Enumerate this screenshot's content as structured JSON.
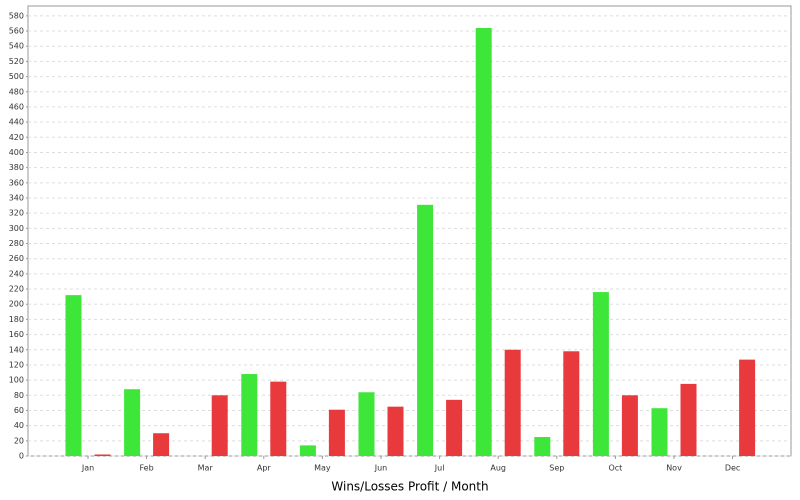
{
  "chart_data": {
    "type": "bar",
    "x_label": "Wins/Losses Profit / Month",
    "categories": [
      "Jan",
      "Feb",
      "Mar",
      "Apr",
      "May",
      "Jun",
      "Jul",
      "Aug",
      "Sep",
      "Oct",
      "Nov",
      "Dec"
    ],
    "series": [
      {
        "color": "#3ee63a",
        "values": [
          212,
          88,
          0,
          108,
          14,
          84,
          331,
          564,
          25,
          216,
          63,
          0
        ]
      },
      {
        "color": "#e8393c",
        "values": [
          2,
          30,
          80,
          98,
          61,
          65,
          74,
          140,
          138,
          80,
          95,
          127
        ]
      }
    ],
    "ylim": [
      0,
      593
    ],
    "yticks": [
      0,
      20,
      40,
      60,
      80,
      100,
      120,
      140,
      160,
      180,
      200,
      220,
      240,
      260,
      280,
      300,
      320,
      340,
      360,
      380,
      400,
      420,
      440,
      460,
      480,
      500,
      520,
      540,
      560,
      580
    ],
    "grid": true
  }
}
